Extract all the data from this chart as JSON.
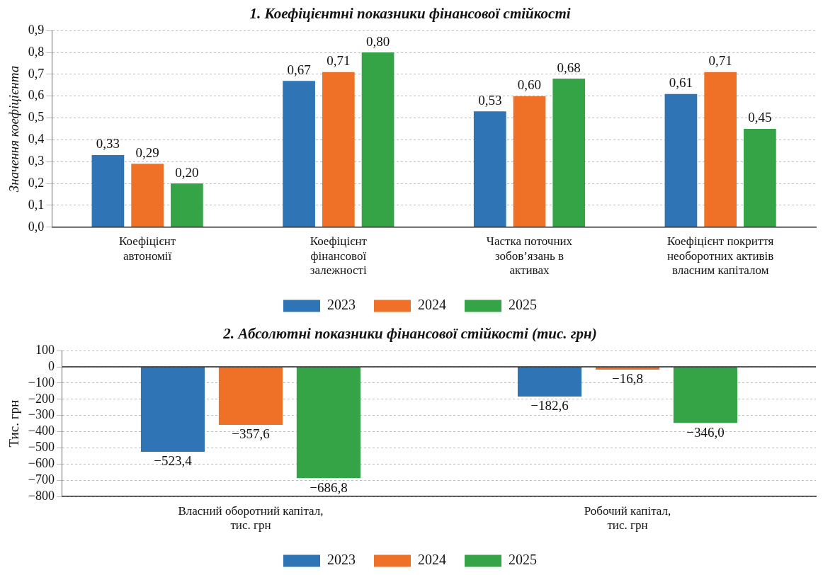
{
  "chart_data": [
    {
      "type": "bar",
      "title": "1. Коефіцієнтні показники фінансової стійкості",
      "ylabel": "Значення коефіцієнта",
      "categories": [
        "Коефіцієнт автономії",
        "Коефіцієнт фінансової залежності",
        "Частка поточних зобов’язань в активах",
        "Коефіцієнт покриття необоротних активів власним капіталом"
      ],
      "series": [
        {
          "name": "2023",
          "color": "#2f75b5",
          "values": [
            0.33,
            0.67,
            0.53,
            0.61
          ],
          "value_labels": [
            "0,33",
            "0,67",
            "0,53",
            "0,61"
          ]
        },
        {
          "name": "2024",
          "color": "#ee7127",
          "values": [
            0.29,
            0.71,
            0.6,
            0.71
          ],
          "value_labels": [
            "0,29",
            "0,71",
            "0,60",
            "0,71"
          ]
        },
        {
          "name": "2025",
          "color": "#34a447",
          "values": [
            0.2,
            0.8,
            0.68,
            0.45
          ],
          "value_labels": [
            "0,20",
            "0,80",
            "0,68",
            "0,45"
          ]
        }
      ],
      "ylim": [
        0,
        0.9
      ],
      "yticks": [
        {
          "value": 0,
          "label": "0,0"
        },
        {
          "value": 0.1,
          "label": "0,1"
        },
        {
          "value": 0.2,
          "label": "0,2"
        },
        {
          "value": 0.3,
          "label": "0,3"
        },
        {
          "value": 0.4,
          "label": "0,4"
        },
        {
          "value": 0.5,
          "label": "0,5"
        },
        {
          "value": 0.6,
          "label": "0,6"
        },
        {
          "value": 0.7,
          "label": "0,7"
        },
        {
          "value": 0.8,
          "label": "0,8"
        },
        {
          "value": 0.9,
          "label": "0,9"
        }
      ],
      "grid": "y",
      "legend": "bottom"
    },
    {
      "type": "bar",
      "title": "2. Абсолютні показники фінансової стійкості (тис. грн)",
      "ylabel": "Тис. грн",
      "categories": [
        "Власний оборотний капітал, тис. грн",
        "Робочий капітал, тис. грн"
      ],
      "series": [
        {
          "name": "2023",
          "color": "#2f75b5",
          "values": [
            -523.4,
            -182.6
          ],
          "value_labels": [
            "−523,4",
            "−182,6"
          ]
        },
        {
          "name": "2024",
          "color": "#ee7127",
          "values": [
            -357.6,
            -16.8
          ],
          "value_labels": [
            "−357,6",
            "−16,8"
          ]
        },
        {
          "name": "2025",
          "color": "#34a447",
          "values": [
            -686.8,
            -346.0
          ],
          "value_labels": [
            "−686,8",
            "−346,0"
          ]
        }
      ],
      "ylim": [
        -800,
        100
      ],
      "yticks": [
        {
          "value": -800,
          "label": "−800"
        },
        {
          "value": -700,
          "label": "−700"
        },
        {
          "value": -600,
          "label": "−600"
        },
        {
          "value": -500,
          "label": "−500"
        },
        {
          "value": -400,
          "label": "−400"
        },
        {
          "value": -300,
          "label": "−300"
        },
        {
          "value": -200,
          "label": "−200"
        },
        {
          "value": -100,
          "label": "−100"
        },
        0,
        100
      ],
      "grid": "y",
      "legend": "bottom"
    }
  ]
}
